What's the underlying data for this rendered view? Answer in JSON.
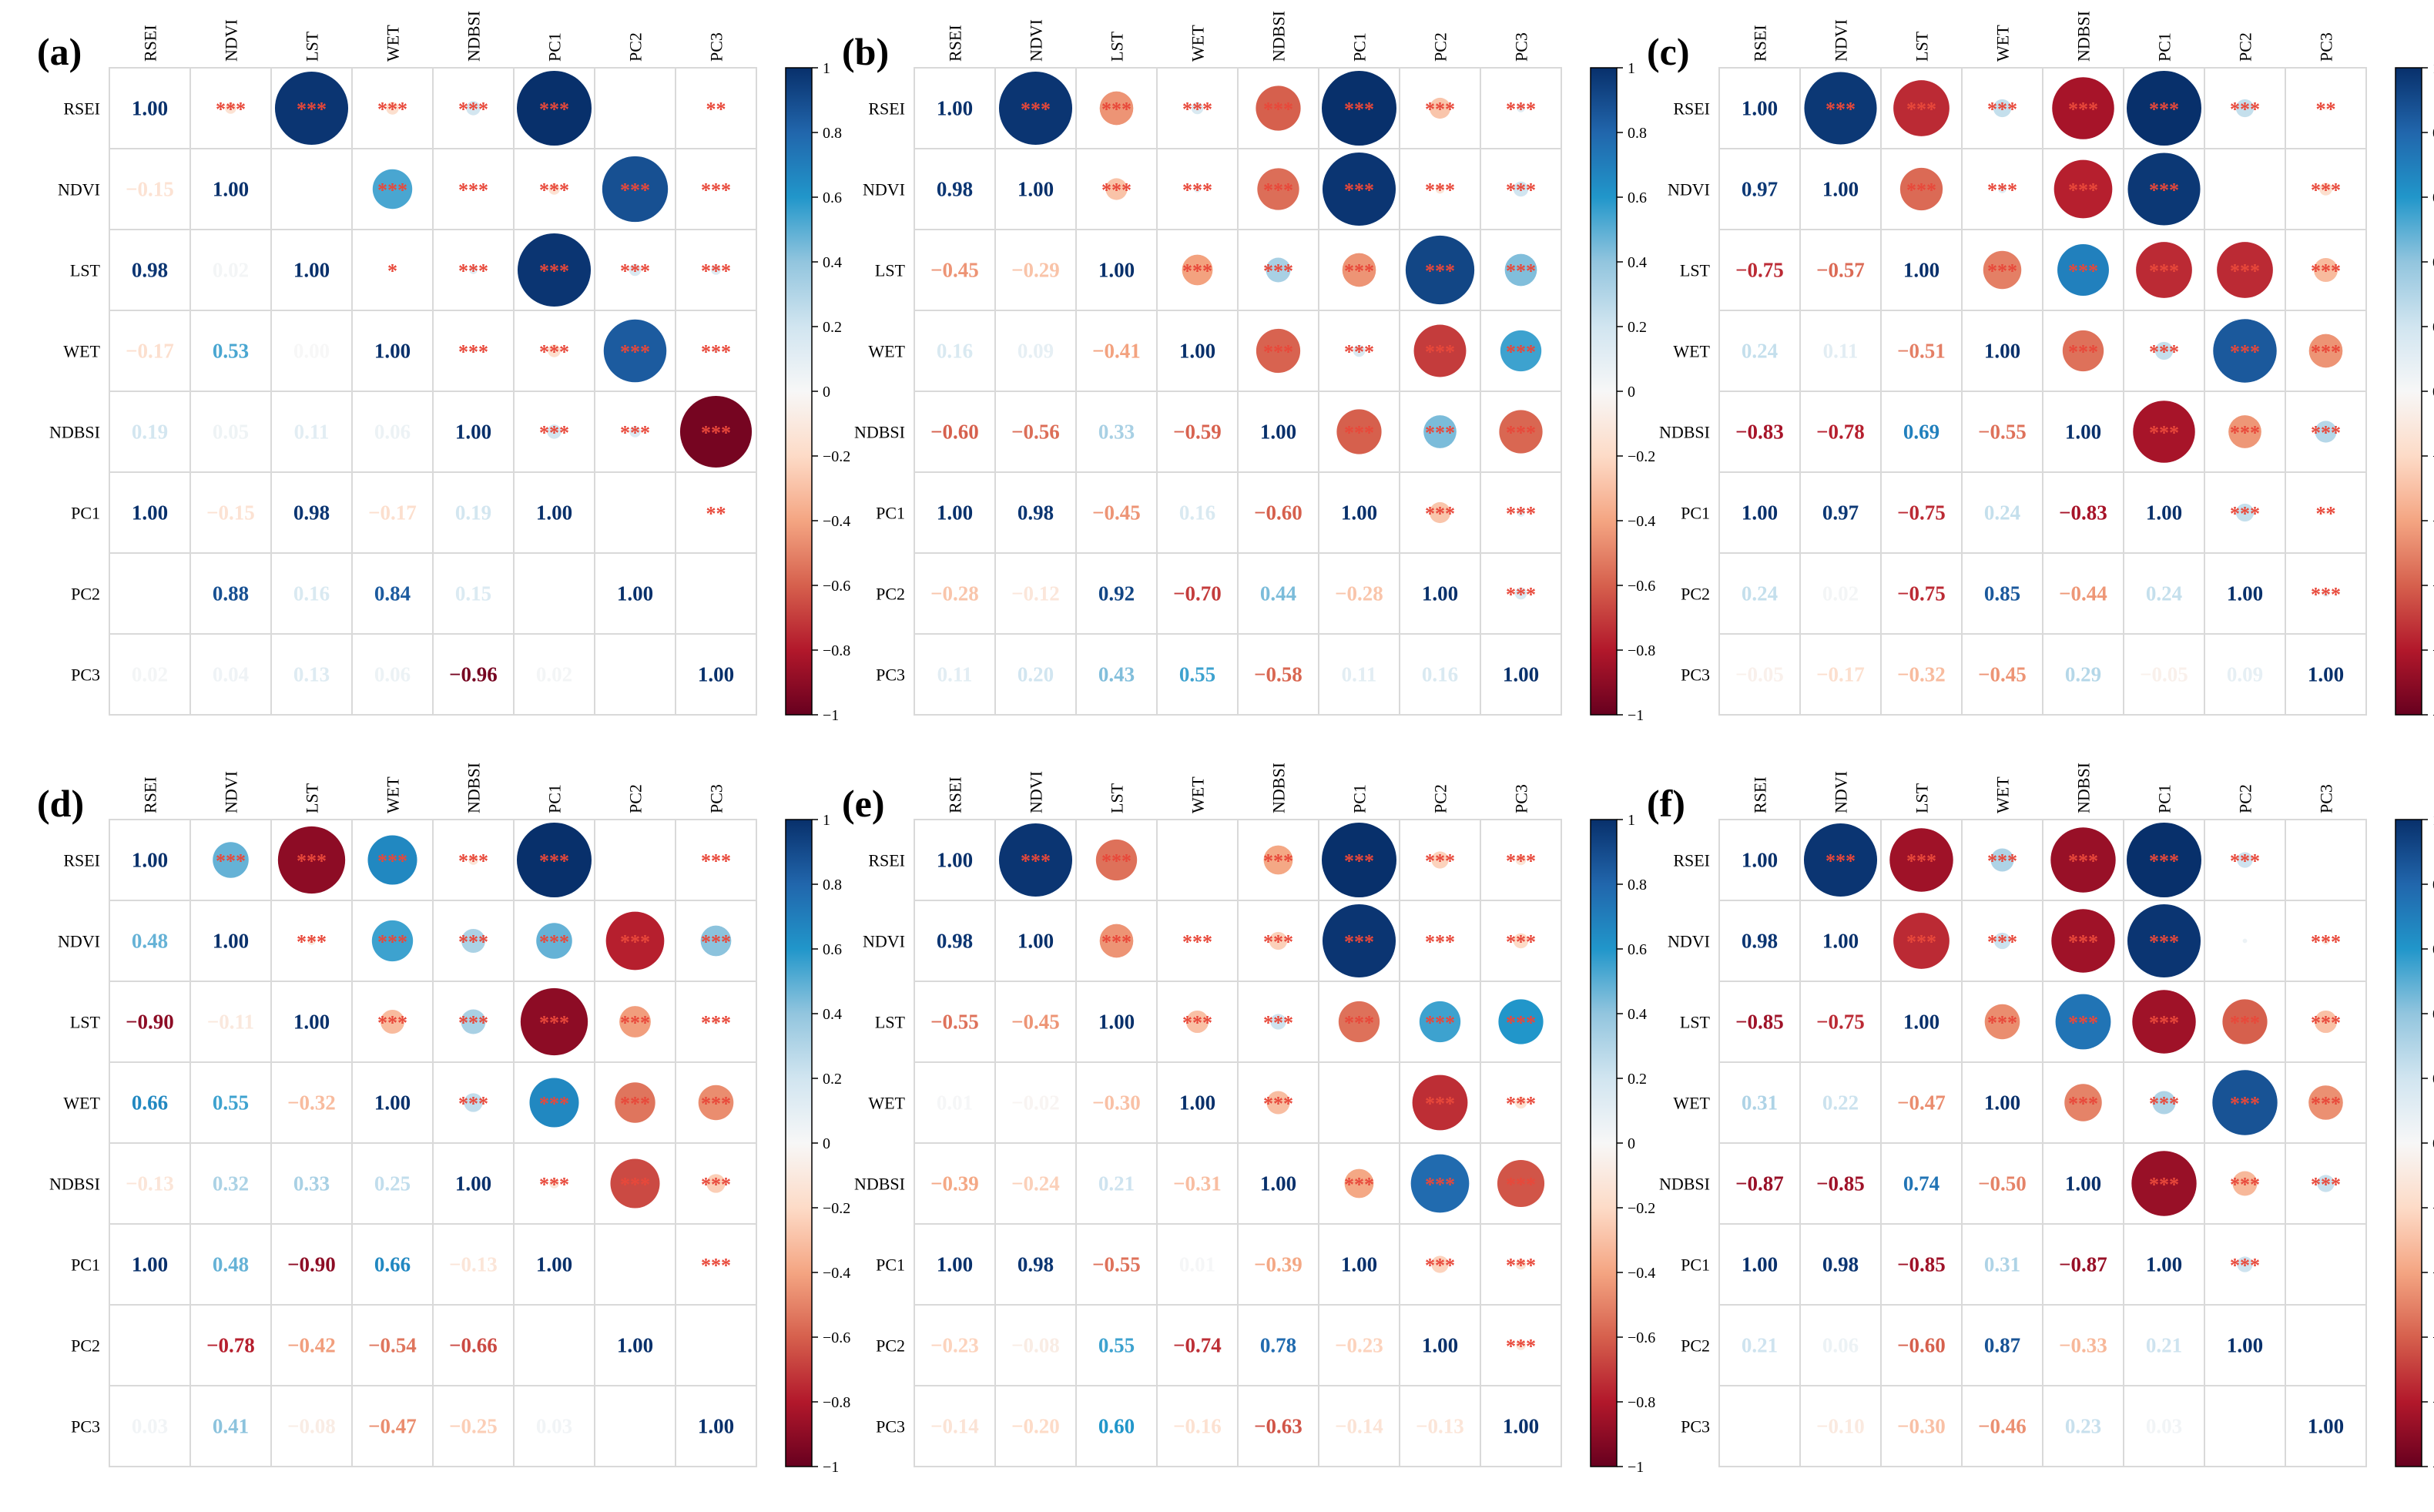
{
  "figure": {
    "variables": [
      "RSEI",
      "NDVI",
      "LST",
      "WET",
      "NDBSI",
      "PC1",
      "PC2",
      "PC3"
    ],
    "colorbar_ticks": [
      "1",
      "0.8",
      "0.6",
      "0.4",
      "0.2",
      "0",
      "−0.2",
      "−0.4",
      "−0.6",
      "−0.8",
      "−1"
    ],
    "colors": {
      "positive_max": "#08306b",
      "negative_max": "#67001f",
      "neutral": "#f7f7f7",
      "stars": "#e8483a",
      "grid": "#d9d9d9"
    }
  },
  "chart_data": [
    {
      "type": "heatmap",
      "title": "(a)",
      "lower": [
        [
          -0.15
        ],
        [
          0.98,
          0.02
        ],
        [
          -0.17,
          0.53,
          0.0
        ],
        [
          0.19,
          0.05,
          0.11,
          0.06
        ],
        [
          1.0,
          -0.15,
          0.98,
          -0.17,
          0.19
        ],
        [
          null,
          0.88,
          0.16,
          0.84,
          0.15,
          null
        ],
        [
          0.02,
          0.04,
          0.13,
          0.06,
          -0.96,
          0.02,
          null
        ]
      ],
      "upper_sig": [
        [
          "***",
          "***",
          "***",
          "***",
          "***",
          "",
          "**"
        ],
        [
          "",
          "***",
          "***",
          "***",
          "***",
          "***"
        ],
        [
          "*",
          "***",
          "***",
          "***",
          "***"
        ],
        [
          "***",
          "***",
          "***",
          "***"
        ],
        [
          "***",
          "***",
          "***"
        ],
        [
          "",
          "**"
        ],
        [
          ""
        ]
      ]
    },
    {
      "type": "heatmap",
      "title": "(b)",
      "lower": [
        [
          0.98
        ],
        [
          -0.45,
          -0.29
        ],
        [
          0.16,
          0.09,
          -0.41
        ],
        [
          -0.6,
          -0.56,
          0.33,
          -0.59
        ],
        [
          1.0,
          0.98,
          -0.45,
          0.16,
          -0.6
        ],
        [
          -0.28,
          -0.12,
          0.92,
          -0.7,
          0.44,
          -0.28
        ],
        [
          0.11,
          0.2,
          0.43,
          0.55,
          -0.58,
          0.11,
          0.16
        ]
      ],
      "upper_sig": [
        [
          "***",
          "***",
          "***",
          "***",
          "***",
          "***",
          "***"
        ],
        [
          "***",
          "***",
          "***",
          "***",
          "***",
          "***"
        ],
        [
          "***",
          "***",
          "***",
          "***",
          "***"
        ],
        [
          "***",
          "***",
          "***",
          "***"
        ],
        [
          "***",
          "***",
          "***"
        ],
        [
          "***",
          "***"
        ],
        [
          "***"
        ]
      ]
    },
    {
      "type": "heatmap",
      "title": "(c)",
      "lower": [
        [
          0.97
        ],
        [
          -0.75,
          -0.57
        ],
        [
          0.24,
          0.11,
          -0.51
        ],
        [
          -0.83,
          -0.78,
          0.69,
          -0.55
        ],
        [
          1.0,
          0.97,
          -0.75,
          0.24,
          -0.83
        ],
        [
          0.24,
          0.02,
          -0.75,
          0.85,
          -0.44,
          0.24
        ],
        [
          -0.05,
          -0.17,
          -0.32,
          -0.45,
          0.29,
          -0.05,
          0.09
        ]
      ],
      "upper_sig": [
        [
          "***",
          "***",
          "***",
          "***",
          "***",
          "***",
          "**"
        ],
        [
          "***",
          "***",
          "***",
          "***",
          "",
          "***"
        ],
        [
          "***",
          "***",
          "***",
          "***",
          "***"
        ],
        [
          "***",
          "***",
          "***",
          "***"
        ],
        [
          "***",
          "***",
          "***"
        ],
        [
          "***",
          "**"
        ],
        [
          "***"
        ]
      ]
    },
    {
      "type": "heatmap",
      "title": "(d)",
      "lower": [
        [
          0.48
        ],
        [
          -0.9,
          -0.11
        ],
        [
          0.66,
          0.55,
          -0.32
        ],
        [
          -0.13,
          0.32,
          0.33,
          0.25
        ],
        [
          1.0,
          0.48,
          -0.9,
          0.66,
          -0.13
        ],
        [
          null,
          -0.78,
          -0.42,
          -0.54,
          -0.66,
          null
        ],
        [
          0.03,
          0.41,
          -0.08,
          -0.47,
          -0.25,
          0.03,
          null
        ]
      ],
      "upper_sig": [
        [
          "***",
          "***",
          "***",
          "***",
          "***",
          "",
          "***"
        ],
        [
          "***",
          "***",
          "***",
          "***",
          "***",
          "***"
        ],
        [
          "***",
          "***",
          "***",
          "***",
          "***"
        ],
        [
          "***",
          "***",
          "***",
          "***"
        ],
        [
          "***",
          "***",
          "***"
        ],
        [
          "",
          "***"
        ],
        [
          ""
        ]
      ]
    },
    {
      "type": "heatmap",
      "title": "(e)",
      "lower": [
        [
          0.98
        ],
        [
          -0.55,
          -0.45
        ],
        [
          0.01,
          -0.02,
          -0.3
        ],
        [
          -0.39,
          -0.24,
          0.21,
          -0.31
        ],
        [
          1.0,
          0.98,
          -0.55,
          0.01,
          -0.39
        ],
        [
          -0.23,
          -0.08,
          0.55,
          -0.74,
          0.78,
          -0.23
        ],
        [
          -0.14,
          -0.2,
          0.6,
          -0.16,
          -0.63,
          -0.14,
          -0.13
        ]
      ],
      "upper_sig": [
        [
          "***",
          "***",
          "",
          "***",
          "***",
          "***",
          "***"
        ],
        [
          "***",
          "***",
          "***",
          "***",
          "***",
          "***"
        ],
        [
          "***",
          "***",
          "***",
          "***",
          "***"
        ],
        [
          "***",
          "",
          "***",
          "***"
        ],
        [
          "***",
          "***",
          "***"
        ],
        [
          "***",
          "***"
        ],
        [
          "***"
        ]
      ]
    },
    {
      "type": "heatmap",
      "title": "(f)",
      "lower": [
        [
          0.98
        ],
        [
          -0.85,
          -0.75
        ],
        [
          0.31,
          0.22,
          -0.47
        ],
        [
          -0.87,
          -0.85,
          0.74,
          -0.5
        ],
        [
          1.0,
          0.98,
          -0.85,
          0.31,
          -0.87
        ],
        [
          0.21,
          0.06,
          -0.6,
          0.87,
          -0.33,
          0.21
        ],
        [
          null,
          -0.1,
          -0.3,
          -0.46,
          0.23,
          0.03,
          null
        ]
      ],
      "upper_sig": [
        [
          "***",
          "***",
          "***",
          "***",
          "***",
          "***",
          ""
        ],
        [
          "***",
          "***",
          "***",
          "***",
          "",
          "***"
        ],
        [
          "***",
          "***",
          "***",
          "***",
          "***"
        ],
        [
          "***",
          "***",
          "***",
          "***"
        ],
        [
          "***",
          "***",
          "***"
        ],
        [
          "***",
          ""
        ],
        [
          ""
        ]
      ]
    }
  ]
}
